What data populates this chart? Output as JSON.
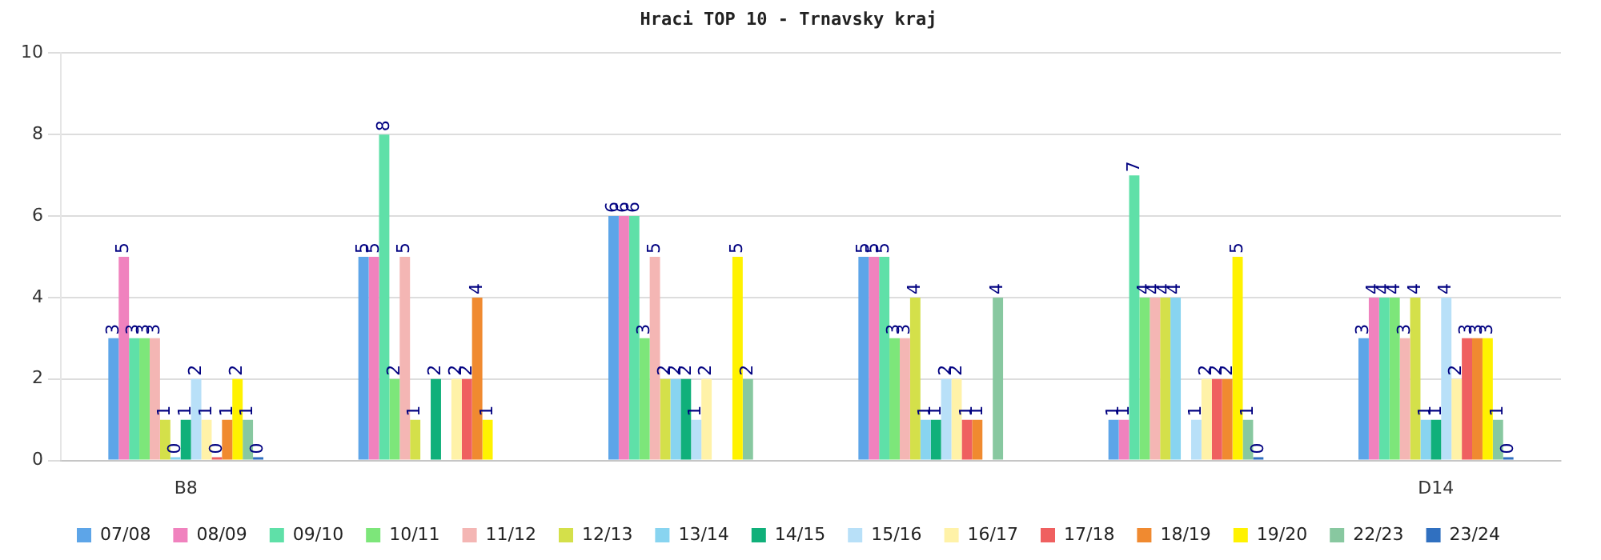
{
  "chart_data": {
    "type": "bar",
    "title": "Hraci TOP 10 - Trnavsky kraj",
    "categories": [
      "B8",
      null,
      null,
      null,
      null,
      "D14"
    ],
    "series": [
      {
        "name": "07/08",
        "color": "#5da5e8",
        "values": [
          3,
          5,
          6,
          5,
          1,
          3
        ]
      },
      {
        "name": "08/09",
        "color": "#f082be",
        "values": [
          5,
          5,
          6,
          5,
          1,
          4
        ]
      },
      {
        "name": "09/10",
        "color": "#5fe0a8",
        "values": [
          3,
          8,
          6,
          5,
          7,
          4
        ]
      },
      {
        "name": "10/11",
        "color": "#7de67a",
        "values": [
          3,
          2,
          3,
          3,
          4,
          4
        ]
      },
      {
        "name": "11/12",
        "color": "#f4b6b4",
        "values": [
          3,
          5,
          5,
          3,
          4,
          3
        ]
      },
      {
        "name": "12/13",
        "color": "#d4e04a",
        "values": [
          1,
          1,
          2,
          4,
          4,
          4
        ]
      },
      {
        "name": "13/14",
        "color": "#88d4f0",
        "values": [
          0,
          null,
          2,
          1,
          4,
          1
        ]
      },
      {
        "name": "14/15",
        "color": "#10b07a",
        "values": [
          1,
          2,
          2,
          1,
          null,
          1
        ]
      },
      {
        "name": "15/16",
        "color": "#b8e0f8",
        "values": [
          2,
          null,
          1,
          2,
          1,
          4
        ]
      },
      {
        "name": "16/17",
        "color": "#fff2a8",
        "values": [
          1,
          2,
          2,
          2,
          2,
          2
        ]
      },
      {
        "name": "17/18",
        "color": "#ef6060",
        "values": [
          0,
          2,
          null,
          1,
          2,
          3
        ]
      },
      {
        "name": "18/19",
        "color": "#f08a30",
        "values": [
          1,
          4,
          null,
          1,
          2,
          3
        ]
      },
      {
        "name": "19/20",
        "color": "#fff200",
        "values": [
          2,
          1,
          5,
          null,
          5,
          3
        ]
      },
      {
        "name": "22/23",
        "color": "#88c8a0",
        "values": [
          1,
          null,
          2,
          4,
          1,
          1
        ]
      },
      {
        "name": "23/24",
        "color": "#3070c0",
        "values": [
          0,
          null,
          null,
          null,
          0,
          0
        ]
      }
    ],
    "ylim": [
      0,
      10
    ],
    "yticks": [
      0,
      2,
      4,
      6,
      8,
      10
    ],
    "grid": "y",
    "legend": "bottom",
    "data_labels": true
  }
}
